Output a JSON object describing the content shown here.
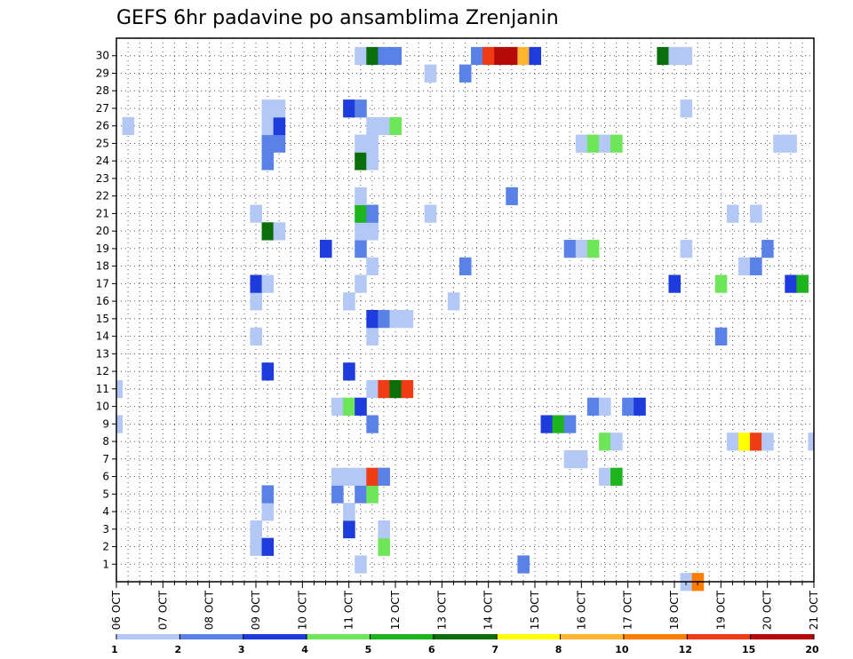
{
  "chart_data": {
    "type": "heatmap",
    "title": "GEFS 6hr padavine po ansamblima Zrenjanin",
    "xlabel": "",
    "ylabel": "",
    "x_tick_labels": [
      "06 OCT",
      "07 OCT",
      "08 OCT",
      "09 OCT",
      "10 OCT",
      "11 OCT",
      "12 OCT",
      "13 OCT",
      "14 OCT",
      "15 OCT",
      "16 OCT",
      "17 OCT",
      "18 OCT",
      "19 OCT",
      "20 OCT",
      "21 OCT"
    ],
    "x_unit": "6-hour steps from 06 OCT 00Z",
    "xlim": [
      0,
      60
    ],
    "y_tick_labels": [
      "1",
      "2",
      "3",
      "4",
      "5",
      "6",
      "7",
      "8",
      "9",
      "10",
      "11",
      "12",
      "13",
      "14",
      "15",
      "16",
      "17",
      "18",
      "19",
      "20",
      "21",
      "22",
      "23",
      "24",
      "25",
      "26",
      "27",
      "28",
      "29",
      "30"
    ],
    "ylim": [
      0,
      30
    ],
    "grid": true,
    "colorbar": {
      "levels": [
        "1",
        "2",
        "3",
        "4",
        "5",
        "6",
        "7",
        "8",
        "10",
        "12",
        "15",
        "20"
      ],
      "colors": [
        "#b4c8f5",
        "#5a82e6",
        "#1e3cdc",
        "#6ee65a",
        "#1eb41e",
        "#0a6e0a",
        "#ffff00",
        "#ffb432",
        "#ff7d00",
        "#f03c14",
        "#b40a0a"
      ]
    },
    "cells": [
      [
        21,
        0,
        0
      ],
      [
        35,
        0,
        1
      ],
      [
        12,
        1,
        0
      ],
      [
        13,
        1,
        2
      ],
      [
        23,
        1,
        3
      ],
      [
        12,
        2,
        0
      ],
      [
        20,
        2,
        2
      ],
      [
        23,
        2,
        0
      ],
      [
        13,
        3,
        0
      ],
      [
        20,
        3,
        0
      ],
      [
        13,
        4,
        1
      ],
      [
        19,
        4,
        1
      ],
      [
        21,
        4,
        1
      ],
      [
        22,
        4,
        3
      ],
      [
        19,
        5,
        0
      ],
      [
        20,
        5,
        0
      ],
      [
        21,
        5,
        0
      ],
      [
        22,
        5,
        9
      ],
      [
        23,
        5,
        1
      ],
      [
        42,
        5,
        0
      ],
      [
        43,
        5,
        4
      ],
      [
        39,
        6,
        0
      ],
      [
        40,
        6,
        0
      ],
      [
        42,
        7,
        3
      ],
      [
        43,
        7,
        0
      ],
      [
        53,
        7,
        0
      ],
      [
        54,
        7,
        6
      ],
      [
        55,
        7,
        9
      ],
      [
        56,
        7,
        0
      ],
      [
        60,
        7,
        0
      ],
      [
        0,
        8,
        0
      ],
      [
        22,
        8,
        1
      ],
      [
        37,
        8,
        2
      ],
      [
        38,
        8,
        4
      ],
      [
        39,
        8,
        1
      ],
      [
        19,
        9,
        0
      ],
      [
        20,
        9,
        3
      ],
      [
        21,
        9,
        2
      ],
      [
        41,
        9,
        1
      ],
      [
        42,
        9,
        0
      ],
      [
        44,
        9,
        1
      ],
      [
        45,
        9,
        2
      ],
      [
        0,
        10,
        0
      ],
      [
        22,
        10,
        0
      ],
      [
        23,
        10,
        9
      ],
      [
        24,
        10,
        5
      ],
      [
        25,
        10,
        9
      ],
      [
        13,
        11,
        2
      ],
      [
        20,
        11,
        2
      ],
      [
        12,
        13,
        0
      ],
      [
        22,
        13,
        0
      ],
      [
        52,
        13,
        1
      ],
      [
        22,
        14,
        2
      ],
      [
        23,
        14,
        1
      ],
      [
        24,
        14,
        0
      ],
      [
        25,
        14,
        0
      ],
      [
        12,
        15,
        0
      ],
      [
        20,
        15,
        0
      ],
      [
        29,
        15,
        0
      ],
      [
        12,
        16,
        2
      ],
      [
        13,
        16,
        0
      ],
      [
        21,
        16,
        0
      ],
      [
        48,
        16,
        2
      ],
      [
        52,
        16,
        3
      ],
      [
        58,
        16,
        2
      ],
      [
        59,
        16,
        4
      ],
      [
        22,
        17,
        0
      ],
      [
        30,
        17,
        1
      ],
      [
        54,
        17,
        0
      ],
      [
        55,
        17,
        1
      ],
      [
        18,
        18,
        2
      ],
      [
        21,
        18,
        1
      ],
      [
        39,
        18,
        1
      ],
      [
        40,
        18,
        0
      ],
      [
        41,
        18,
        3
      ],
      [
        49,
        18,
        0
      ],
      [
        56,
        18,
        1
      ],
      [
        13,
        19,
        5
      ],
      [
        14,
        19,
        0
      ],
      [
        21,
        19,
        0
      ],
      [
        22,
        19,
        0
      ],
      [
        12,
        20,
        0
      ],
      [
        21,
        20,
        4
      ],
      [
        22,
        20,
        1
      ],
      [
        27,
        20,
        0
      ],
      [
        53,
        20,
        0
      ],
      [
        55,
        20,
        0
      ],
      [
        21,
        21,
        0
      ],
      [
        34,
        21,
        1
      ],
      [
        13,
        23,
        1
      ],
      [
        21,
        23,
        5
      ],
      [
        22,
        23,
        0
      ],
      [
        13,
        24,
        1
      ],
      [
        14,
        24,
        1
      ],
      [
        21,
        24,
        0
      ],
      [
        22,
        24,
        0
      ],
      [
        40,
        24,
        0
      ],
      [
        41,
        24,
        3
      ],
      [
        42,
        24,
        0
      ],
      [
        43,
        24,
        3
      ],
      [
        57,
        24,
        0
      ],
      [
        58,
        24,
        0
      ],
      [
        1,
        25,
        0
      ],
      [
        13,
        25,
        0
      ],
      [
        14,
        25,
        2
      ],
      [
        22,
        25,
        0
      ],
      [
        23,
        25,
        0
      ],
      [
        24,
        25,
        3
      ],
      [
        13,
        26,
        0
      ],
      [
        14,
        26,
        0
      ],
      [
        20,
        26,
        2
      ],
      [
        21,
        26,
        1
      ],
      [
        49,
        26,
        0
      ],
      [
        27,
        28,
        0
      ],
      [
        30,
        28,
        1
      ],
      [
        21,
        29,
        0
      ],
      [
        22,
        29,
        5
      ],
      [
        23,
        29,
        1
      ],
      [
        24,
        29,
        1
      ],
      [
        31,
        29,
        1
      ],
      [
        32,
        29,
        9
      ],
      [
        33,
        29,
        10
      ],
      [
        34,
        29,
        10
      ],
      [
        35,
        29,
        7
      ],
      [
        36,
        29,
        2
      ],
      [
        47,
        29,
        5
      ],
      [
        48,
        29,
        0
      ],
      [
        49,
        29,
        0
      ],
      [
        49,
        -1,
        0
      ],
      [
        50,
        -1,
        8
      ]
    ]
  }
}
